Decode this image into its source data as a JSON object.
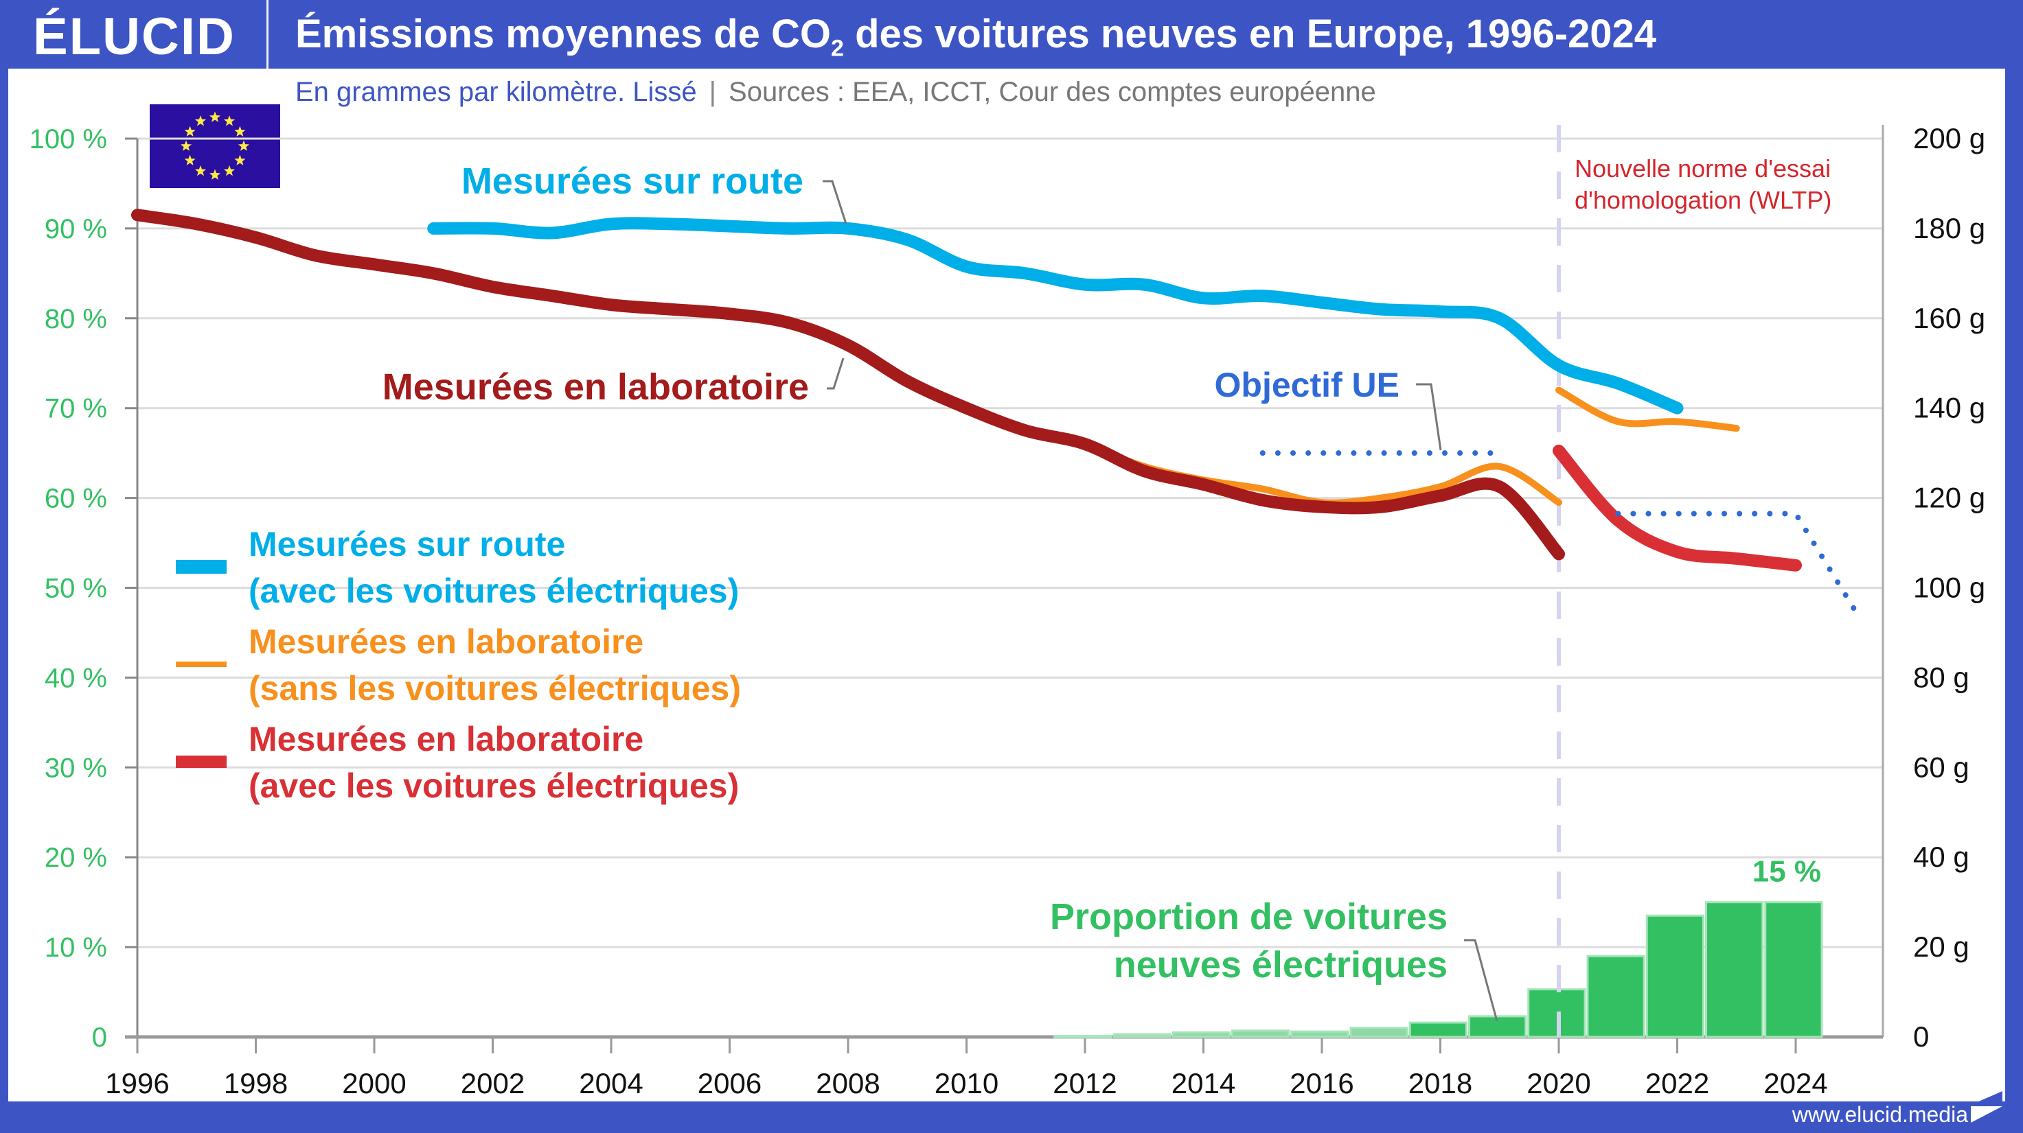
{
  "header": {
    "logo": "ÉLUCID",
    "title_part1": "Émissions moyennes de CO",
    "title_sub": "2",
    "title_part2": " des voitures neuves en Europe, 1996-2024"
  },
  "subtitle": {
    "unit": "En grammes par kilomètre. Lissé",
    "sources": "Sources : EEA, ICCT, Cour des comptes européenne"
  },
  "footer": {
    "url": "www.elucid.media"
  },
  "colors": {
    "brand": "#3d55c4",
    "road": "#00aee8",
    "lab_old": "#a31b1b",
    "lab_no_ev": "#f8901e",
    "lab_with_ev": "#d93035",
    "target": "#2f6ad6",
    "ev_share": "#33c062",
    "wltp": "#d4262d"
  },
  "chart_data": {
    "type": "line",
    "title": "Émissions moyennes de CO2 des voitures neuves en Europe, 1996-2024",
    "subtitle": "En grammes par kilomètre. Lissé",
    "xlabel": "",
    "xlim": [
      1996,
      2025
    ],
    "x_ticks": [
      "1996",
      "1998",
      "2000",
      "2002",
      "2004",
      "2006",
      "2008",
      "2010",
      "2012",
      "2014",
      "2016",
      "2018",
      "2020",
      "2022",
      "2024"
    ],
    "y_right": {
      "label": "g CO2/km",
      "ylim": [
        0,
        200
      ],
      "ticks": [
        "0",
        "20 g",
        "40 g",
        "60 g",
        "80 g",
        "100 g",
        "120 g",
        "140 g",
        "160 g",
        "180 g",
        "200 g"
      ]
    },
    "y_left": {
      "label": "Proportion de voitures neuves électriques",
      "ylim": [
        0,
        100
      ],
      "ticks": [
        "0",
        "10 %",
        "20 %",
        "30 %",
        "40 %",
        "50 %",
        "60 %",
        "70 %",
        "80 %",
        "90 %",
        "100 %"
      ]
    },
    "grid": true,
    "legend_position": "left-middle",
    "series": [
      {
        "key": "lab_old",
        "name": "Mesurées en laboratoire",
        "axis": "right",
        "x": [
          1996,
          1997,
          1998,
          1999,
          2000,
          2001,
          2002,
          2003,
          2004,
          2005,
          2006,
          2007,
          2008,
          2009,
          2010,
          2011,
          2012,
          2013,
          2014,
          2015,
          2016,
          2017,
          2018,
          2019,
          2020
        ],
        "values": [
          183,
          181,
          178,
          174,
          172,
          170,
          167,
          165,
          163,
          162,
          161,
          159,
          154,
          146,
          140,
          135,
          132,
          126,
          123,
          119.5,
          118,
          118,
          120.5,
          122.5,
          107.5
        ]
      },
      {
        "key": "road",
        "name": "Mesurées sur route (avec les voitures électriques)",
        "axis": "right",
        "x": [
          2001,
          2002,
          2003,
          2004,
          2005,
          2006,
          2007,
          2008,
          2009,
          2010,
          2011,
          2012,
          2013,
          2014,
          2015,
          2016,
          2017,
          2018,
          2019,
          2020,
          2021,
          2022
        ],
        "values": [
          180,
          180,
          179,
          181,
          181,
          180.5,
          180,
          180,
          177.5,
          171.5,
          170,
          167.5,
          167.5,
          164.5,
          165,
          163.5,
          162,
          161.5,
          160,
          149.5,
          145.5,
          140
        ]
      },
      {
        "key": "lab_no_ev_nedc",
        "name": "Mesurées en laboratoire (sans les voitures électriques)",
        "axis": "right",
        "x": [
          2012,
          2013,
          2014,
          2015,
          2016,
          2017,
          2018,
          2019,
          2020
        ],
        "values": [
          132,
          127,
          124,
          122,
          119,
          120,
          122.5,
          127,
          119
        ]
      },
      {
        "key": "lab_no_ev_wltp",
        "name": "Mesurées en laboratoire (sans les voitures électriques) — WLTP",
        "axis": "right",
        "x": [
          2020,
          2021,
          2022,
          2023
        ],
        "values": [
          144,
          137,
          137,
          135.5
        ]
      },
      {
        "key": "lab_with_ev_wltp",
        "name": "Mesurées en laboratoire (avec les voitures électriques)",
        "axis": "right",
        "x": [
          2020,
          2021,
          2022,
          2023,
          2024
        ],
        "values": [
          130.5,
          115,
          108,
          106.5,
          105
        ]
      },
      {
        "key": "target_1",
        "name": "Objectif UE",
        "axis": "right",
        "x": [
          2015,
          2019
        ],
        "values": [
          130,
          130
        ]
      },
      {
        "key": "target_2",
        "name": "Objectif UE",
        "axis": "right",
        "x": [
          2021,
          2024,
          2025
        ],
        "values": [
          116.5,
          116.5,
          95
        ]
      }
    ],
    "bars": {
      "name": "Proportion de voitures neuves électriques",
      "axis": "left",
      "x": [
        2012,
        2013,
        2014,
        2015,
        2016,
        2017,
        2018,
        2019,
        2020,
        2021,
        2022,
        2023,
        2024
      ],
      "values": [
        0.1,
        0.3,
        0.5,
        0.7,
        0.6,
        1.0,
        1.6,
        2.3,
        5.3,
        9.0,
        13.5,
        15.0,
        15.0
      ],
      "label_last": "15 %"
    },
    "annotations": {
      "road_label": "Mesurées sur route",
      "lab_label": "Mesurées en laboratoire",
      "target_label": "Objectif UE",
      "wltp_label_1": "Nouvelle norme d'essai",
      "wltp_label_2": "d'homologation (WLTP)",
      "wltp_year": 2020,
      "bars_label_1": "Proportion de voitures",
      "bars_label_2": "neuves électriques"
    },
    "legend": [
      {
        "key": "road",
        "line1": "Mesurées sur route",
        "line2": "(avec les voitures électriques)"
      },
      {
        "key": "lab_no_ev",
        "line1": "Mesurées en laboratoire",
        "line2": "(sans les voitures électriques)"
      },
      {
        "key": "lab_with_ev",
        "line1": "Mesurées en laboratoire",
        "line2": "(avec les voitures électriques)"
      }
    ]
  }
}
